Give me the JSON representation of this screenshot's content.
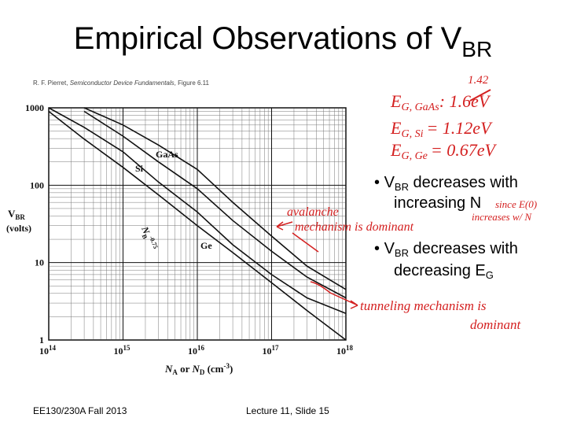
{
  "title": {
    "main": "Empirical Observations of V",
    "sub": "BR"
  },
  "citation": {
    "before": "R. F. Pierret, ",
    "italic": "Semiconductor Device Fundamentals",
    "after": ", Figure 6.11"
  },
  "chart_data": {
    "type": "line",
    "log_x": true,
    "log_y": true,
    "minor_grid": true,
    "color": "#111111",
    "x": [
      100000000000000.0,
      300000000000000.0,
      1000000000000000.0,
      3000000000000000.0,
      1e+16,
      3e+16,
      1e+17,
      3e+17,
      1e+18
    ],
    "xlim": [
      100000000000000.0,
      1e+18
    ],
    "ylim": [
      1,
      1000
    ],
    "xticks": [
      {
        "value": 100000000000000.0,
        "label": "10",
        "exp": "14"
      },
      {
        "value": 1000000000000000.0,
        "label": "10",
        "exp": "15"
      },
      {
        "value": 1e+16,
        "label": "10",
        "exp": "16"
      },
      {
        "value": 1e+17,
        "label": "10",
        "exp": "17"
      },
      {
        "value": 1e+18,
        "label": "10",
        "exp": "18"
      }
    ],
    "yticks": [
      1,
      10,
      100,
      1000
    ],
    "y_label": {
      "main": "V",
      "sub": "BR",
      "units": "(volts)"
    },
    "x_label": {
      "a": "N",
      "a_sub": "A",
      "or": " or ",
      "d": "N",
      "d_sub": "D",
      "units": " (cm",
      "units_sup": "-3",
      "close": ")"
    },
    "series": [
      {
        "name": "GaAs",
        "color": "#111111",
        "values": [
          null,
          1000,
          600,
          330,
          160,
          60,
          22,
          9,
          4.5
        ]
      },
      {
        "name": "Si",
        "color": "#111111",
        "values": [
          null,
          900,
          430,
          200,
          90,
          35,
          14,
          6.5,
          3.5
        ]
      },
      {
        "name": "Ge",
        "color": "#111111",
        "values": [
          1000,
          560,
          270,
          110,
          45,
          17,
          7,
          3.5,
          2.2
        ]
      },
      {
        "name": "N",
        "name_sub": "B",
        "name_sup": "-0.75",
        "color": "#111111",
        "values": [
          900,
          395,
          170,
          75,
          30,
          13.5,
          5.5,
          2.4,
          1
        ]
      }
    ]
  },
  "bullets": [
    {
      "a": "V",
      "a_sub": "BR",
      "text": " decreases with",
      "line2": "increasing N"
    },
    {
      "a": "V",
      "a_sub": "BR",
      "text": " decreases with",
      "line2": "decreasing E",
      "line2_sub": "G"
    }
  ],
  "handwriting": {
    "gap_gaas_new": "1.42",
    "gap_gaas": "E",
    "gap_gaas_sub": "G, GaAs",
    "gap_gaas_old": ": 1.6eV",
    "gap_si": "E",
    "gap_si_sub": "G, Si",
    "gap_si_val": "= 1.12eV",
    "gap_ge": "E",
    "gap_ge_sub": "G, Ge",
    "gap_ge_val": "= 0.67eV",
    "avalanche_1": "avalanche",
    "avalanche_2": "mechanism is dominant",
    "tunnel_1": "tunneling mechanism is",
    "tunnel_2": "dominant",
    "since_1": "since E(0)",
    "since_2": "increases w/ N"
  },
  "footer": {
    "left": "EE130/230A Fall 2013",
    "center": "Lecture 11, Slide 15"
  }
}
